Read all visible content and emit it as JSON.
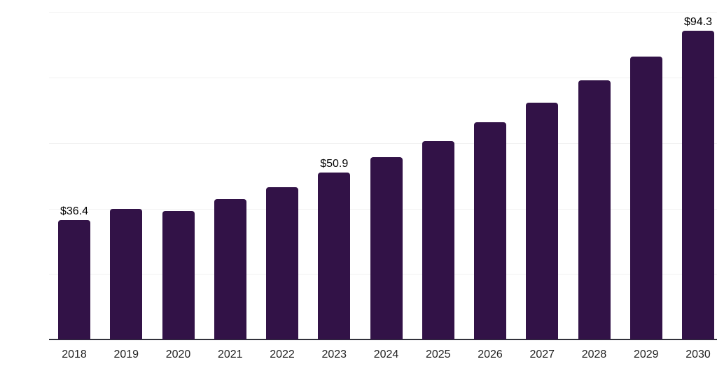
{
  "chart_data": {
    "type": "bar",
    "title": "",
    "xlabel": "",
    "ylabel": "",
    "categories": [
      "2018",
      "2019",
      "2020",
      "2021",
      "2022",
      "2023",
      "2024",
      "2025",
      "2026",
      "2027",
      "2028",
      "2029",
      "2030"
    ],
    "values": [
      36.4,
      39.9,
      39.2,
      42.8,
      46.6,
      50.9,
      55.6,
      60.7,
      66.4,
      72.3,
      79.2,
      86.5,
      94.3
    ],
    "data_labels": [
      {
        "category": "2018",
        "text": "$36.4"
      },
      {
        "category": "2023",
        "text": "$50.9"
      },
      {
        "category": "2030",
        "text": "$94.3"
      }
    ],
    "ylim": [
      0,
      100
    ],
    "gridline_step": 20,
    "grid": "horizontal-only",
    "legend": "none"
  },
  "colors": {
    "background": "#ffffff",
    "bar": "#321247",
    "gridline": "#f1f1f1",
    "axis_line": "#31313b",
    "tick_label": "#222222",
    "data_label": "#000000"
  }
}
